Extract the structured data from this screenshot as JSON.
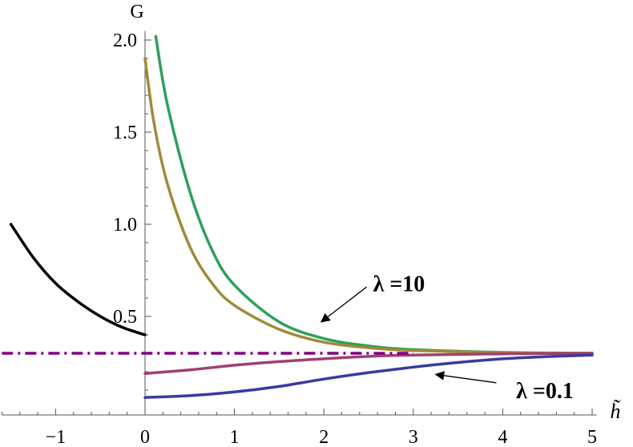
{
  "chart_data": {
    "type": "line",
    "xlabel": "h̃",
    "ylabel": "G",
    "xlim": [
      -1.6,
      5.05
    ],
    "ylim": [
      0.05,
      2.05
    ],
    "x_ticks": [
      -1,
      0,
      1,
      2,
      3,
      4,
      5
    ],
    "x_tick_labels": [
      "−1",
      "0",
      "1",
      "2",
      "3",
      "4",
      "5"
    ],
    "y_ticks": [
      0.5,
      1.0,
      1.5,
      2.0
    ],
    "y_tick_labels": [
      "0.5",
      "1.0",
      "1.5",
      "2.0"
    ],
    "grid": false,
    "series": [
      {
        "color": "#000000",
        "x": [
          -1.5,
          -1.25,
          -1.0,
          -0.75,
          -0.5,
          -0.25,
          0.0
        ],
        "y": [
          1.0,
          0.82,
          0.68,
          0.58,
          0.5,
          0.44,
          0.4
        ]
      },
      {
        "color": "#2ea05a",
        "x": [
          0.12,
          0.25,
          0.5,
          0.75,
          1.0,
          1.5,
          2.0,
          2.5,
          3.0,
          4.0,
          5.0
        ],
        "y": [
          2.02,
          1.65,
          1.18,
          0.86,
          0.67,
          0.47,
          0.38,
          0.34,
          0.32,
          0.305,
          0.3
        ]
      },
      {
        "color": "#a08a3a",
        "x": [
          0.0,
          0.1,
          0.25,
          0.5,
          0.75,
          1.0,
          1.5,
          2.0,
          2.5,
          3.0,
          4.0,
          5.0
        ],
        "y": [
          1.9,
          1.55,
          1.22,
          0.88,
          0.68,
          0.56,
          0.43,
          0.36,
          0.33,
          0.315,
          0.303,
          0.3
        ]
      },
      {
        "color": "#a0406e",
        "x": [
          0.0,
          0.5,
          1.0,
          1.5,
          2.0,
          2.5,
          3.0,
          4.0,
          5.0
        ],
        "y": [
          0.19,
          0.21,
          0.235,
          0.255,
          0.27,
          0.283,
          0.29,
          0.297,
          0.3
        ]
      },
      {
        "color": "#3a3aa0",
        "x": [
          0.0,
          0.5,
          1.0,
          1.5,
          2.0,
          2.5,
          3.0,
          3.5,
          4.0,
          4.5,
          5.0
        ],
        "y": [
          0.06,
          0.07,
          0.09,
          0.12,
          0.16,
          0.195,
          0.225,
          0.25,
          0.27,
          0.282,
          0.29
        ]
      },
      {
        "color": "#800080",
        "dash": "dashdot",
        "x": [
          -1.6,
          3.0
        ],
        "y": [
          0.3,
          0.3
        ]
      }
    ],
    "annotations": [
      {
        "label": "λ =10",
        "text_at": [
          2.55,
          0.68
        ],
        "arrow_from": [
          2.55,
          0.66
        ],
        "arrow_to": [
          1.97,
          0.47
        ]
      },
      {
        "label": "λ =0.1",
        "text_at": [
          4.15,
          0.1
        ],
        "arrow_from": [
          4.0,
          0.14
        ],
        "arrow_to": [
          3.25,
          0.185
        ]
      }
    ]
  }
}
